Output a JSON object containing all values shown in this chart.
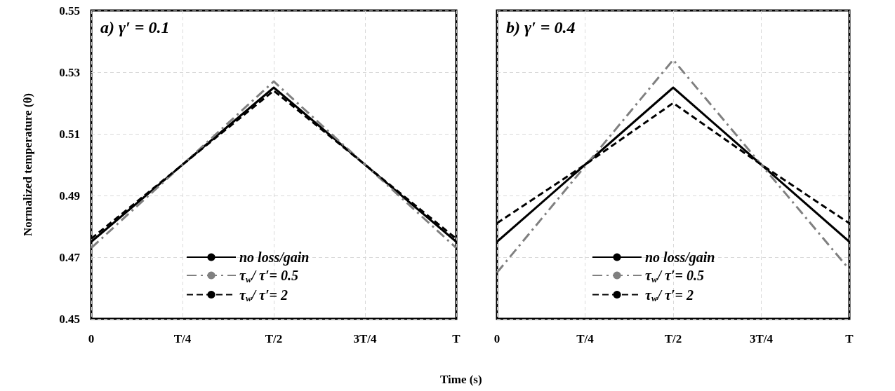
{
  "chart_data": [
    {
      "type": "line",
      "title": "a) γ′ = 0.1",
      "xlabel": "Time (s)",
      "ylabel": "Normalized temperature (θ)",
      "categories": [
        "0",
        "T/4",
        "T/2",
        "3T/4",
        "T"
      ],
      "ylim": [
        0.45,
        0.55
      ],
      "yticks": [
        0.45,
        0.47,
        0.49,
        0.51,
        0.53,
        0.55
      ],
      "grid": true,
      "legend": "bottom",
      "marker": "none",
      "series": [
        {
          "name": "no loss/gain",
          "color": "#000000",
          "line_style": "solid",
          "values": [
            0.475,
            0.5,
            0.525,
            0.5,
            0.475
          ]
        },
        {
          "name": "τ$_{w}$/ τ′= 0.5",
          "color": "#808080",
          "line_style": "dashdot",
          "values": [
            0.473,
            0.5,
            0.527,
            0.5,
            0.473
          ]
        },
        {
          "name": "τ$_{w}$/ τ′= 2",
          "color": "#000000",
          "line_style": "dashed",
          "values": [
            0.476,
            0.5,
            0.524,
            0.5,
            0.476
          ]
        }
      ]
    },
    {
      "type": "line",
      "title": "b) γ′ = 0.4",
      "categories": [
        "0",
        "T/4",
        "T/2",
        "3T/4",
        "T"
      ],
      "ylim": [
        0.45,
        0.55
      ],
      "yticks": [
        0.45,
        0.47,
        0.49,
        0.51,
        0.53,
        0.55
      ],
      "grid": true,
      "legend": "bottom",
      "marker": "none",
      "tick_labels": "x",
      "series": [
        {
          "name": "no loss/gain",
          "color": "#000000",
          "line_style": "solid",
          "values": [
            0.475,
            0.5,
            0.525,
            0.5,
            0.475
          ]
        },
        {
          "name": "τ$_{w}$/ τ′= 0.5",
          "color": "#808080",
          "line_style": "dashdot",
          "values": [
            0.465,
            0.4995,
            0.534,
            0.5,
            0.466
          ]
        },
        {
          "name": "τ$_{w}$/ τ′= 2",
          "color": "#000000",
          "line_style": "dashed",
          "values": [
            0.481,
            0.5,
            0.52,
            0.5,
            0.481
          ]
        }
      ]
    }
  ]
}
